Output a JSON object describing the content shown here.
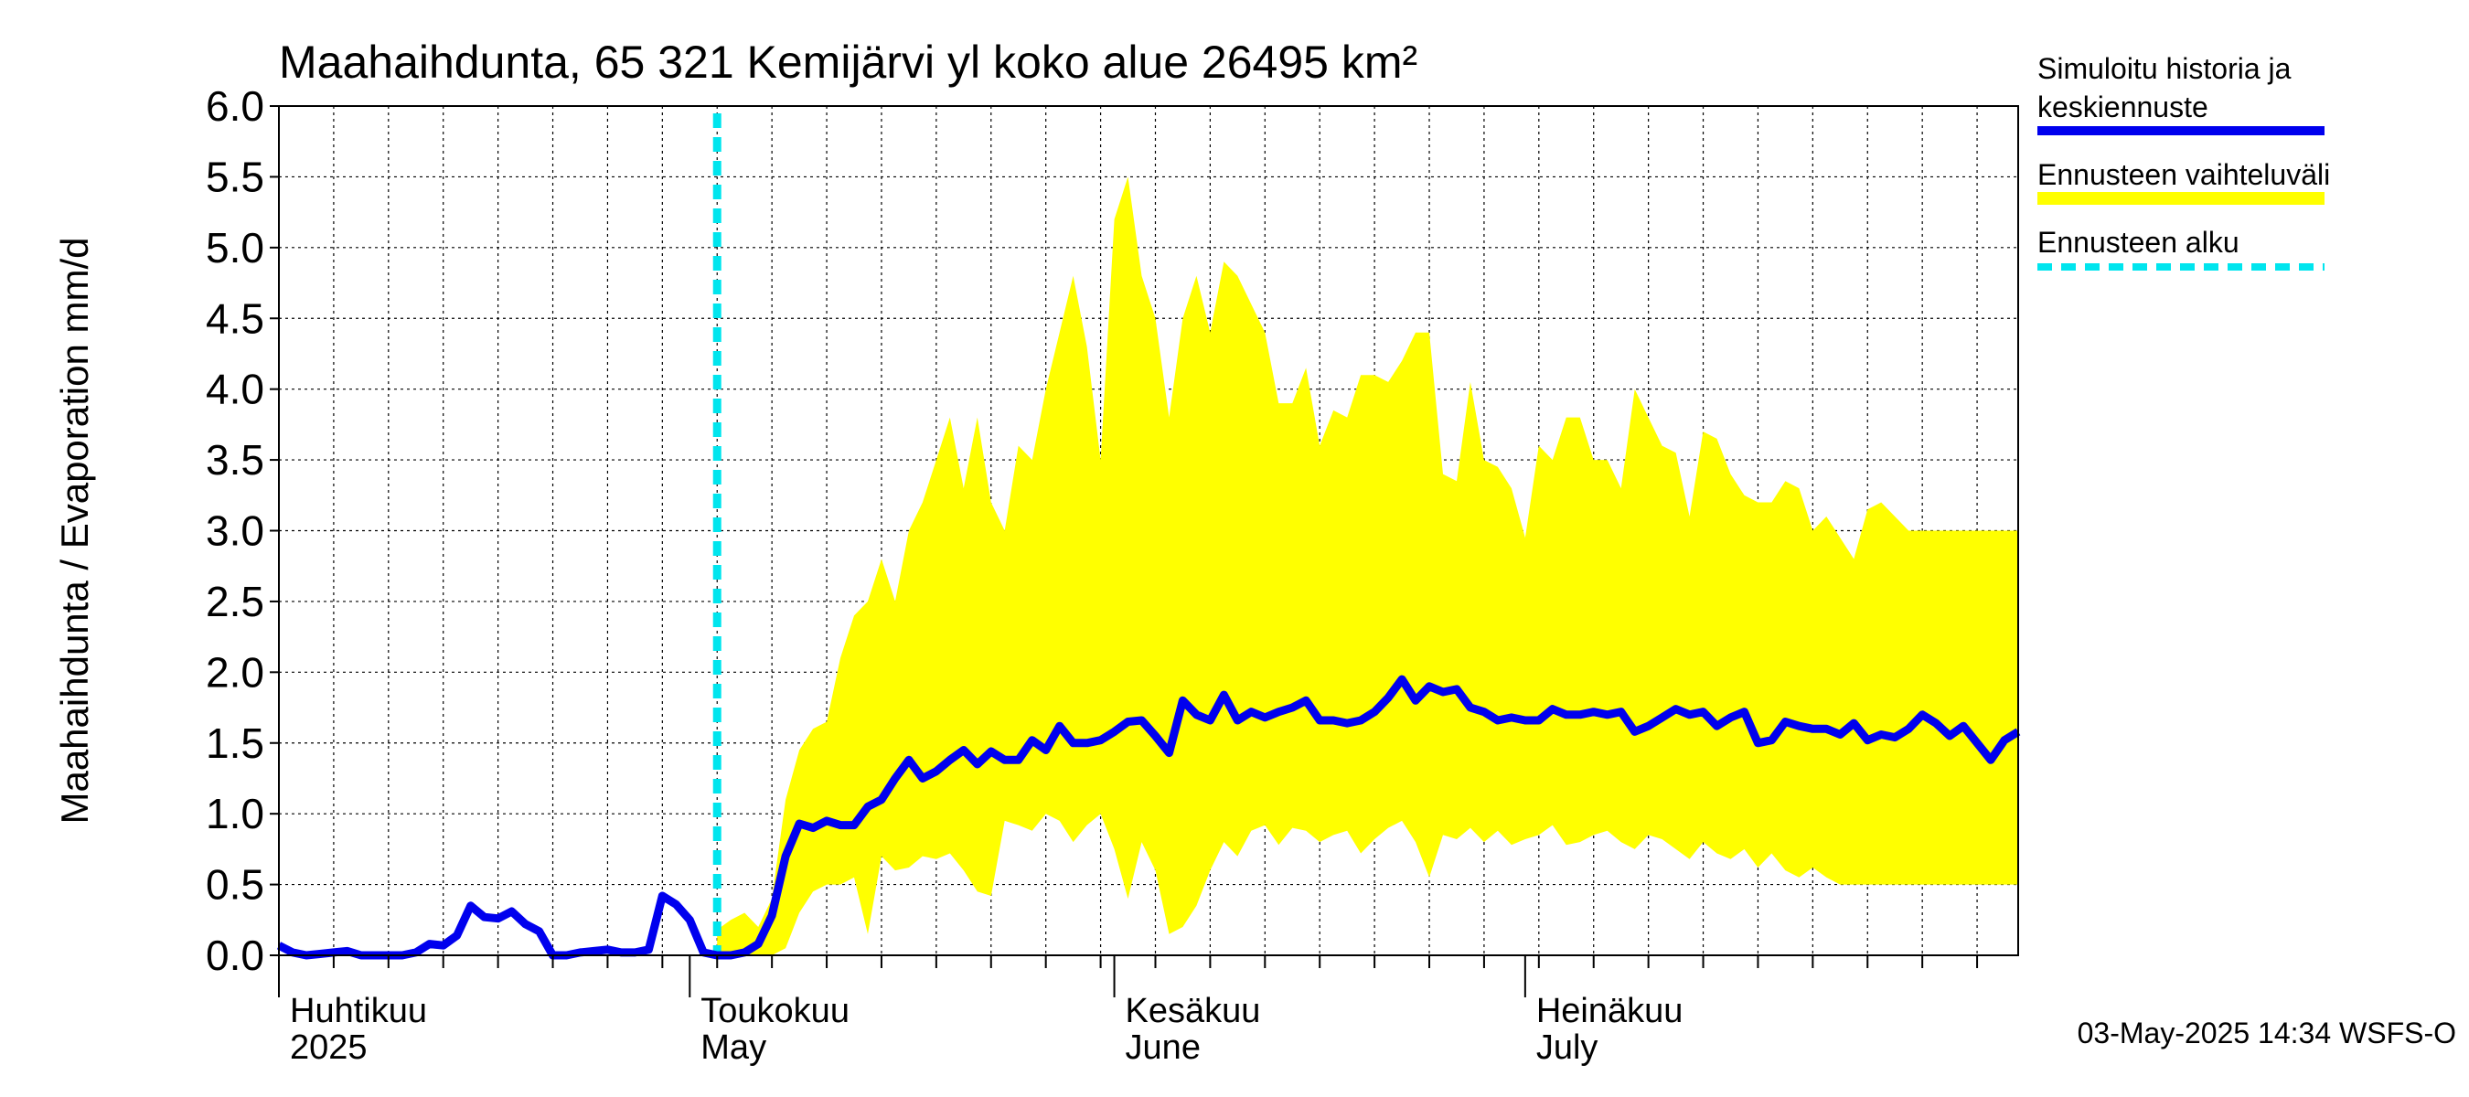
{
  "chart_data": {
    "type": "line",
    "title": "Maahaihdunta, 65 321 Kemijärvi yl koko alue 26495 km²",
    "ylabel": "Maahaihdunta / Evaporation   mm/d",
    "ylim": [
      0,
      6
    ],
    "yticks": [
      "0.0",
      "0.5",
      "1.0",
      "1.5",
      "2.0",
      "2.5",
      "3.0",
      "3.5",
      "4.0",
      "4.5",
      "5.0",
      "5.5",
      "6.0"
    ],
    "x_start_day": 0,
    "x_end_day": 127,
    "forecast_start_day": 32,
    "months": [
      {
        "day": 0,
        "label_fi": "Huhtikuu",
        "label_en": "2025"
      },
      {
        "day": 30,
        "label_fi": "Toukokuu",
        "label_en": "May"
      },
      {
        "day": 61,
        "label_fi": "Kesäkuu",
        "label_en": "June"
      },
      {
        "day": 91,
        "label_fi": "Heinäkuu",
        "label_en": "July"
      }
    ],
    "legend": [
      {
        "label": "Simuloitu historia ja",
        "label2": "keskiennuste",
        "color": "#0000ee",
        "style": "solid"
      },
      {
        "label": "Ennusteen vaihteluväli",
        "color": "#ffff00",
        "style": "band"
      },
      {
        "label": "Ennusteen alku",
        "color": "#00e5ee",
        "style": "dashed"
      }
    ],
    "footer": "03-May-2025 14:34 WSFS-O",
    "series": [
      {
        "name": "Simuloitu historia ja keskiennuste",
        "color": "#0000ee",
        "x": [
          0,
          1,
          2,
          3,
          4,
          5,
          6,
          7,
          8,
          9,
          10,
          11,
          12,
          13,
          14,
          15,
          16,
          17,
          18,
          19,
          20,
          21,
          22,
          23,
          24,
          25,
          26,
          27,
          28,
          29,
          30,
          31,
          32,
          33,
          34,
          35,
          36,
          37,
          38,
          39,
          40,
          41,
          42,
          43,
          44,
          45,
          46,
          47,
          48,
          49,
          50,
          51,
          52,
          53,
          54,
          55,
          56,
          57,
          58,
          59,
          60,
          61,
          62,
          63,
          64,
          65,
          66,
          67,
          68,
          69,
          70,
          71,
          72,
          73,
          74,
          75,
          76,
          77,
          78,
          79,
          80,
          81,
          82,
          83,
          84,
          85,
          86,
          87,
          88,
          89,
          90,
          91,
          92,
          93,
          94,
          95,
          96,
          97,
          98,
          99,
          100,
          101,
          102,
          103,
          104,
          105,
          106,
          107,
          108,
          109,
          110,
          111,
          112,
          113,
          114,
          115,
          116,
          117,
          118,
          119,
          120,
          121,
          122,
          123,
          124,
          125,
          126,
          127
        ],
        "y": [
          0.07,
          0.02,
          0.0,
          0.01,
          0.02,
          0.03,
          0.0,
          0.0,
          0.0,
          0.0,
          0.02,
          0.08,
          0.07,
          0.14,
          0.35,
          0.27,
          0.26,
          0.31,
          0.22,
          0.17,
          0.0,
          0.0,
          0.02,
          0.03,
          0.04,
          0.02,
          0.02,
          0.04,
          0.42,
          0.36,
          0.25,
          0.02,
          0.0,
          0.0,
          0.02,
          0.08,
          0.28,
          0.7,
          0.93,
          0.9,
          0.95,
          0.92,
          0.92,
          1.05,
          1.1,
          1.25,
          1.38,
          1.25,
          1.3,
          1.38,
          1.45,
          1.35,
          1.44,
          1.38,
          1.38,
          1.52,
          1.45,
          1.62,
          1.5,
          1.5,
          1.52,
          1.58,
          1.65,
          1.66,
          1.55,
          1.43,
          1.8,
          1.7,
          1.66,
          1.84,
          1.66,
          1.72,
          1.68,
          1.72,
          1.75,
          1.8,
          1.66,
          1.66,
          1.64,
          1.66,
          1.72,
          1.82,
          1.95,
          1.8,
          1.9,
          1.86,
          1.88,
          1.75,
          1.72,
          1.66,
          1.68,
          1.66,
          1.66,
          1.74,
          1.7,
          1.7,
          1.72,
          1.7,
          1.72,
          1.58,
          1.62,
          1.68,
          1.74,
          1.7,
          1.72,
          1.62,
          1.68,
          1.72,
          1.5,
          1.52,
          1.65,
          1.62,
          1.6,
          1.6,
          1.56,
          1.64,
          1.52,
          1.56,
          1.54,
          1.6,
          1.7,
          1.64,
          1.55,
          1.62,
          1.5,
          1.38,
          1.52,
          1.58
        ]
      }
    ],
    "band": {
      "name": "Ennusteen vaihteluväli",
      "color": "#ffff00",
      "x": [
        32,
        33,
        34,
        35,
        36,
        37,
        38,
        39,
        40,
        41,
        42,
        43,
        44,
        45,
        46,
        47,
        48,
        49,
        50,
        51,
        52,
        53,
        54,
        55,
        56,
        57,
        58,
        59,
        60,
        61,
        62,
        63,
        64,
        65,
        66,
        67,
        68,
        69,
        70,
        71,
        72,
        73,
        74,
        75,
        76,
        77,
        78,
        79,
        80,
        81,
        82,
        83,
        84,
        85,
        86,
        87,
        88,
        89,
        90,
        91,
        92,
        93,
        94,
        95,
        96,
        97,
        98,
        99,
        100,
        101,
        102,
        103,
        104,
        105,
        106,
        107,
        108,
        109,
        110,
        111,
        112,
        113,
        114,
        115,
        116,
        117,
        118,
        119,
        120,
        121,
        122,
        123,
        124,
        125,
        126,
        127
      ],
      "upper": [
        0.18,
        0.25,
        0.3,
        0.2,
        0.4,
        1.1,
        1.45,
        1.6,
        1.65,
        2.1,
        2.4,
        2.5,
        2.8,
        2.5,
        3.0,
        3.2,
        3.5,
        3.8,
        3.3,
        3.8,
        3.2,
        3.0,
        3.6,
        3.5,
        4.0,
        4.4,
        4.8,
        4.3,
        3.5,
        5.2,
        5.5,
        4.8,
        4.5,
        3.8,
        4.5,
        4.8,
        4.4,
        4.9,
        4.8,
        4.6,
        4.4,
        3.9,
        3.9,
        4.15,
        3.6,
        3.85,
        3.8,
        4.1,
        4.1,
        4.05,
        4.2,
        4.4,
        4.4,
        3.4,
        3.35,
        4.05,
        3.5,
        3.45,
        3.3,
        2.95,
        3.6,
        3.5,
        3.8,
        3.8,
        3.5,
        3.5,
        3.3,
        4.0,
        3.8,
        3.6,
        3.55,
        3.1,
        3.7,
        3.65,
        3.4,
        3.25,
        3.2,
        3.2,
        3.35,
        3.3,
        3.0,
        3.1,
        2.95,
        2.8,
        3.15,
        3.2,
        3.1,
        3.0,
        3.0,
        3.0,
        3.0,
        3.0,
        3.0,
        3.0,
        3.0,
        3.0
      ],
      "lower": [
        0.0,
        0.0,
        0.0,
        0.0,
        0.0,
        0.05,
        0.3,
        0.45,
        0.5,
        0.5,
        0.55,
        0.15,
        0.7,
        0.6,
        0.62,
        0.7,
        0.68,
        0.72,
        0.6,
        0.45,
        0.42,
        0.95,
        0.92,
        0.88,
        1.0,
        0.95,
        0.8,
        0.92,
        1.0,
        0.75,
        0.4,
        0.8,
        0.6,
        0.15,
        0.2,
        0.35,
        0.6,
        0.8,
        0.7,
        0.88,
        0.92,
        0.78,
        0.9,
        0.88,
        0.8,
        0.85,
        0.88,
        0.72,
        0.82,
        0.9,
        0.95,
        0.8,
        0.55,
        0.85,
        0.82,
        0.9,
        0.8,
        0.88,
        0.78,
        0.82,
        0.85,
        0.92,
        0.78,
        0.8,
        0.85,
        0.88,
        0.8,
        0.75,
        0.85,
        0.82,
        0.75,
        0.68,
        0.8,
        0.72,
        0.68,
        0.75,
        0.62,
        0.72,
        0.6,
        0.55,
        0.62,
        0.55,
        0.5,
        0.5,
        0.5,
        0.5,
        0.5,
        0.5,
        0.5,
        0.5,
        0.5,
        0.5,
        0.5,
        0.5,
        0.5,
        0.5
      ]
    }
  }
}
